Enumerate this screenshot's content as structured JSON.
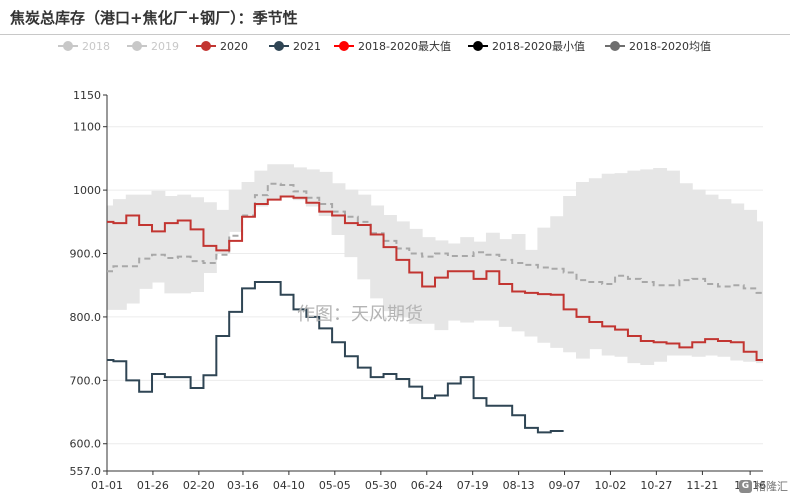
{
  "header": {
    "title": "焦炭总库存（港口+焦化厂+钢厂）：季节性"
  },
  "watermark": "作图：天风期货",
  "logo": {
    "mark": "G",
    "text": "格隆汇"
  },
  "colors": {
    "s2018": "#c8c8c8",
    "s2019": "#c8c8c8",
    "s2020": "#c23531",
    "s2021": "#2f4554",
    "max": "#ff0000",
    "min": "#000000",
    "avg": "#6e6e6e",
    "band": "#e6e6e6",
    "avg_line": "#a8a8a8"
  },
  "chart_data": {
    "type": "line",
    "title": "焦炭总库存（港口+焦化厂+钢厂）：季节性",
    "legend": [
      {
        "name": "2018",
        "color": "#c8c8c8",
        "active": false
      },
      {
        "name": "2019",
        "color": "#c8c8c8",
        "active": false
      },
      {
        "name": "2020",
        "color": "#c23531",
        "active": true
      },
      {
        "name": "2021",
        "color": "#2f4554",
        "active": true
      },
      {
        "name": "2018-2020最大值",
        "color": "#ff0000",
        "active": true
      },
      {
        "name": "2018-2020最小值",
        "color": "#000000",
        "active": true
      },
      {
        "name": "2018-2020均值",
        "color": "#6e6e6e",
        "active": true
      }
    ],
    "x_range": [
      1,
      52
    ],
    "x_ticks": [
      "01-01",
      "01-26",
      "02-20",
      "03-16",
      "04-10",
      "05-05",
      "05-30",
      "06-24",
      "07-19",
      "08-13",
      "09-07",
      "10-02",
      "10-27",
      "11-21",
      "12-16"
    ],
    "x_tick_weeks": [
      1,
      4.57,
      8.14,
      11.57,
      15.14,
      18.71,
      22.29,
      25.86,
      29.43,
      33,
      36.57,
      40.14,
      43.71,
      47.29,
      51
    ],
    "y_range": [
      557.0,
      1150
    ],
    "y_ticks": [
      557.0,
      600.0,
      700.0,
      800.0,
      900.0,
      1000,
      1100,
      1150
    ],
    "y_tick_labels": [
      "557.0",
      "600.0",
      "700.0",
      "800.0",
      "900.0",
      "1000",
      "1100",
      "1150"
    ],
    "series": [
      {
        "name": "2020",
        "values": [
          950,
          948,
          960,
          945,
          935,
          948,
          952,
          938,
          912,
          905,
          920,
          958,
          978,
          985,
          990,
          988,
          980,
          966,
          960,
          948,
          945,
          930,
          910,
          890,
          870,
          848,
          862,
          872,
          872,
          860,
          872,
          852,
          840,
          838,
          836,
          835,
          812,
          800,
          792,
          785,
          780,
          770,
          762,
          760,
          758,
          752,
          760,
          765,
          762,
          760,
          745,
          732
        ]
      },
      {
        "name": "2021",
        "values": [
          732,
          730,
          700,
          682,
          710,
          705,
          705,
          688,
          708,
          770,
          808,
          845,
          855,
          855,
          835,
          812,
          800,
          782,
          760,
          738,
          720,
          705,
          710,
          702,
          690,
          672,
          676,
          695,
          705,
          672,
          660,
          660,
          645,
          625,
          618,
          620
        ]
      },
      {
        "name": "2018-2020均值",
        "values": [
          872,
          880,
          880,
          892,
          898,
          893,
          895,
          888,
          885,
          898,
          928,
          960,
          992,
          1010,
          1008,
          998,
          988,
          978,
          966,
          958,
          950,
          932,
          920,
          908,
          900,
          895,
          900,
          896,
          896,
          902,
          898,
          890,
          885,
          882,
          878,
          876,
          870,
          858,
          855,
          852,
          865,
          860,
          855,
          850,
          850,
          858,
          860,
          852,
          848,
          850,
          845,
          838
        ]
      },
      {
        "name": "2018-2020最大值",
        "values": [
          975,
          985,
          992,
          992,
          998,
          990,
          992,
          988,
          980,
          968,
          1000,
          1012,
          1030,
          1040,
          1040,
          1035,
          1032,
          1028,
          1010,
          1000,
          992,
          975,
          960,
          950,
          938,
          925,
          920,
          915,
          925,
          918,
          932,
          922,
          930,
          905,
          940,
          958,
          990,
          1012,
          1018,
          1025,
          1026,
          1030,
          1032,
          1034,
          1030,
          1010,
          1000,
          992,
          985,
          978,
          968,
          950
        ]
      },
      {
        "name": "2018-2020最小值",
        "values": [
          812,
          812,
          822,
          845,
          855,
          838,
          838,
          840,
          870,
          900,
          935,
          962,
          975,
          985,
          990,
          985,
          975,
          960,
          930,
          895,
          860,
          830,
          810,
          800,
          790,
          790,
          780,
          795,
          792,
          795,
          795,
          785,
          778,
          770,
          760,
          752,
          745,
          735,
          750,
          740,
          738,
          728,
          725,
          730,
          740,
          740,
          738,
          740,
          738,
          732,
          730,
          728
        ]
      }
    ]
  }
}
